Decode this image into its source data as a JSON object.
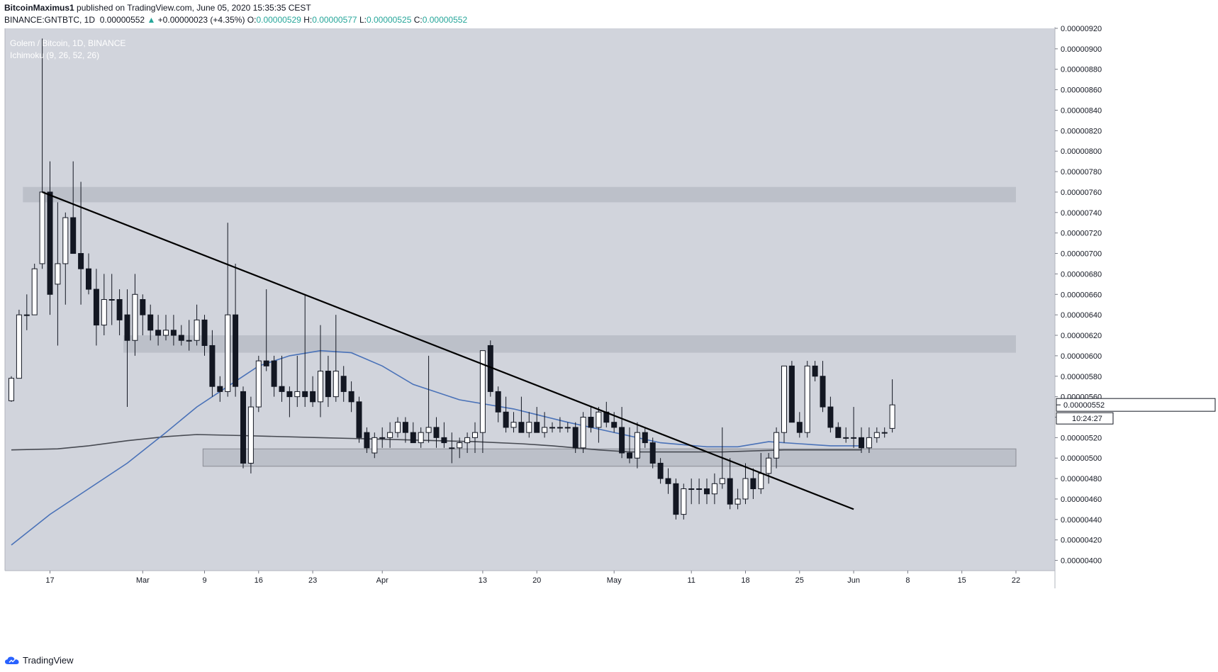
{
  "header": {
    "author": "BitcoinMaximus1",
    "published_text": "published on TradingView.com, June 05, 2020 15:35:35 CEST",
    "symbol": "BINANCE:GNTBTC, 1D",
    "last": "0.00000552",
    "change": "+0.00000023 (+4.35%)",
    "o_label": "O:",
    "o": "0.00000529",
    "h_label": "H:",
    "h": "0.00000577",
    "l_label": "L:",
    "l": "0.00000525",
    "c_label": "C:",
    "c": "0.00000552"
  },
  "footer": {
    "brand": "TradingView"
  },
  "colors": {
    "plot_bg": "#d1d4dc",
    "zone": "#b9bcc5",
    "up_candle": "#ffffff",
    "down_candle": "#131722",
    "blue_line": "#4a72b8",
    "gray_line": "#474a52",
    "trendline": "#000000"
  },
  "chart_data": {
    "type": "candlestick",
    "title": "Golem / Bitcoin, 1D, BINANCE",
    "indicator": "Ichimoku (9, 26, 52, 26)",
    "ylim": [
      3.9e-06,
      9.2e-06
    ],
    "y_ticks": [
      "0.00000400",
      "0.00000420",
      "0.00000440",
      "0.00000460",
      "0.00000480",
      "0.00000500",
      "0.00000520",
      "0.00000540",
      "0.00000560",
      "0.00000580",
      "0.00000600",
      "0.00000620",
      "0.00000640",
      "0.00000660",
      "0.00000680",
      "0.00000700",
      "0.00000720",
      "0.00000740",
      "0.00000760",
      "0.00000780",
      "0.00000800",
      "0.00000820",
      "0.00000840",
      "0.00000860",
      "0.00000880",
      "0.00000900",
      "0.00000920"
    ],
    "x_ticks": [
      {
        "label": "17",
        "day": 0
      },
      {
        "label": "Mar",
        "day": 12
      },
      {
        "label": "9",
        "day": 20
      },
      {
        "label": "16",
        "day": 27
      },
      {
        "label": "23",
        "day": 34
      },
      {
        "label": "Apr",
        "day": 43
      },
      {
        "label": "13",
        "day": 56
      },
      {
        "label": "20",
        "day": 63
      },
      {
        "label": "May",
        "day": 73
      },
      {
        "label": "11",
        "day": 83
      },
      {
        "label": "18",
        "day": 90
      },
      {
        "label": "25",
        "day": 97
      },
      {
        "label": "Jun",
        "day": 104
      },
      {
        "label": "8",
        "day": 111
      },
      {
        "label": "15",
        "day": 118
      },
      {
        "label": "22",
        "day": 125
      }
    ],
    "x_start": "2020-02-11",
    "last_price_label": "0.00000552",
    "countdown_label": "10:24:27",
    "candles": [
      [
        5.56e-06,
        5.8e-06,
        5.55e-06,
        5.78e-06
      ],
      [
        5.78e-06,
        6.45e-06,
        5.78e-06,
        6.4e-06
      ],
      [
        6.4e-06,
        6.6e-06,
        6.25e-06,
        6.4e-06
      ],
      [
        6.4e-06,
        6.9e-06,
        6.4e-06,
        6.85e-06
      ],
      [
        6.9e-06,
        9.1e-06,
        6.85e-06,
        7.6e-06
      ],
      [
        7.6e-06,
        7.9e-06,
        6.4e-06,
        6.6e-06
      ],
      [
        6.7e-06,
        7.5e-06,
        6.1e-06,
        6.9e-06
      ],
      [
        6.9e-06,
        7.4e-06,
        6.5e-06,
        7.35e-06
      ],
      [
        7.35e-06,
        7.9e-06,
        7e-06,
        7e-06
      ],
      [
        7e-06,
        7.7e-06,
        6.5e-06,
        6.85e-06
      ],
      [
        6.85e-06,
        7e-06,
        6.6e-06,
        6.65e-06
      ],
      [
        6.65e-06,
        6.85e-06,
        6.1e-06,
        6.3e-06
      ],
      [
        6.3e-06,
        6.8e-06,
        6.2e-06,
        6.55e-06
      ],
      [
        6.55e-06,
        6.8e-06,
        6.3e-06,
        6.55e-06
      ],
      [
        6.55e-06,
        6.65e-06,
        6.2e-06,
        6.35e-06
      ],
      [
        6.4e-06,
        6.65e-06,
        5.5e-06,
        6.15e-06
      ],
      [
        6.15e-06,
        6.8e-06,
        6e-06,
        6.6e-06
      ],
      [
        6.55e-06,
        6.6e-06,
        6.2e-06,
        6.4e-06
      ],
      [
        6.4e-06,
        6.5e-06,
        6.15e-06,
        6.25e-06
      ],
      [
        6.25e-06,
        6.4e-06,
        6.1e-06,
        6.2e-06
      ],
      [
        6.2e-06,
        6.4e-06,
        6.15e-06,
        6.25e-06
      ],
      [
        6.25e-06,
        6.4e-06,
        6.1e-06,
        6.2e-06
      ],
      [
        6.2e-06,
        6.3e-06,
        6.1e-06,
        6.15e-06
      ],
      [
        6.15e-06,
        6.35e-06,
        6.05e-06,
        6.15e-06
      ],
      [
        6.15e-06,
        6.5e-06,
        6.1e-06,
        6.35e-06
      ],
      [
        6.35e-06,
        6.4e-06,
        6e-06,
        6.1e-06
      ],
      [
        6.1e-06,
        6.25e-06,
        5.6e-06,
        5.7e-06
      ],
      [
        5.7e-06,
        5.8e-06,
        5.55e-06,
        5.65e-06
      ],
      [
        5.65e-06,
        7.3e-06,
        5.6e-06,
        6.4e-06
      ],
      [
        6.4e-06,
        6.9e-06,
        5.6e-06,
        5.7e-06
      ],
      [
        5.65e-06,
        5.7e-06,
        4.9e-06,
        4.95e-06
      ],
      [
        4.95e-06,
        5.6e-06,
        4.85e-06,
        5.5e-06
      ],
      [
        5.5e-06,
        6e-06,
        5.45e-06,
        5.95e-06
      ],
      [
        5.95e-06,
        6.65e-06,
        5.85e-06,
        5.9e-06
      ],
      [
        5.95e-06,
        6e-06,
        5.6e-06,
        5.7e-06
      ],
      [
        5.7e-06,
        6e-06,
        5.55e-06,
        5.65e-06
      ],
      [
        5.65e-06,
        5.7e-06,
        5.4e-06,
        5.6e-06
      ],
      [
        5.6e-06,
        6e-06,
        5.5e-06,
        5.65e-06
      ],
      [
        5.65e-06,
        6.6e-06,
        5.5e-06,
        5.6e-06
      ],
      [
        5.65e-06,
        5.8e-06,
        5.5e-06,
        5.55e-06
      ],
      [
        5.55e-06,
        6.3e-06,
        5.4e-06,
        5.85e-06
      ],
      [
        5.85e-06,
        6e-06,
        5.5e-06,
        5.6e-06
      ],
      [
        5.6e-06,
        6.4e-06,
        5.55e-06,
        5.85e-06
      ],
      [
        5.8e-06,
        5.9e-06,
        5.55e-06,
        5.65e-06
      ],
      [
        5.65e-06,
        5.75e-06,
        5.45e-06,
        5.55e-06
      ],
      [
        5.55e-06,
        5.6e-06,
        5.15e-06,
        5.2e-06
      ],
      [
        5.25e-06,
        5.3e-06,
        5.05e-06,
        5.1e-06
      ],
      [
        5.05e-06,
        5.25e-06,
        5e-06,
        5.2e-06
      ],
      [
        5.2e-06,
        5.3e-06,
        5.1e-06,
        5.2e-06
      ],
      [
        5.2e-06,
        5.35e-06,
        5.1e-06,
        5.25e-06
      ],
      [
        5.25e-06,
        5.4e-06,
        5.2e-06,
        5.35e-06
      ],
      [
        5.35e-06,
        5.4e-06,
        5.15e-06,
        5.25e-06
      ],
      [
        5.25e-06,
        5.35e-06,
        5.15e-06,
        5.15e-06
      ],
      [
        5.15e-06,
        5.3e-06,
        5.1e-06,
        5.25e-06
      ],
      [
        5.25e-06,
        6e-06,
        5.15e-06,
        5.3e-06
      ],
      [
        5.3e-06,
        5.4e-06,
        5.1e-06,
        5.2e-06
      ],
      [
        5.2e-06,
        5.35e-06,
        5.1e-06,
        5.15e-06
      ],
      [
        5.1e-06,
        5.25e-06,
        4.95e-06,
        5.1e-06
      ],
      [
        5.1e-06,
        5.2e-06,
        5e-06,
        5.15e-06
      ],
      [
        5.15e-06,
        5.25e-06,
        5.05e-06,
        5.2e-06
      ],
      [
        5.2e-06,
        5.35e-06,
        5.05e-06,
        5.25e-06
      ],
      [
        5.25e-06,
        6.05e-06,
        5.05e-06,
        6.05e-06
      ],
      [
        6.1e-06,
        6.15e-06,
        5.6e-06,
        5.65e-06
      ],
      [
        5.65e-06,
        5.7e-06,
        5.35e-06,
        5.45e-06
      ],
      [
        5.45e-06,
        5.6e-06,
        5.25e-06,
        5.3e-06
      ],
      [
        5.3e-06,
        5.45e-06,
        5.25e-06,
        5.35e-06
      ],
      [
        5.35e-06,
        5.6e-06,
        5.25e-06,
        5.25e-06
      ],
      [
        5.25e-06,
        5.45e-06,
        5.2e-06,
        5.35e-06
      ],
      [
        5.35e-06,
        5.5e-06,
        5.25e-06,
        5.25e-06
      ],
      [
        5.25e-06,
        5.45e-06,
        5.2e-06,
        5.3e-06
      ],
      [
        5.3e-06,
        5.35e-06,
        5.25e-06,
        5.3e-06
      ],
      [
        5.3e-06,
        5.4e-06,
        5.25e-06,
        5.3e-06
      ],
      [
        5.3e-06,
        5.35e-06,
        5.25e-06,
        5.3e-06
      ],
      [
        5.3e-06,
        5.35e-06,
        5.05e-06,
        5.1e-06
      ],
      [
        5.1e-06,
        5.45e-06,
        5.05e-06,
        5.4e-06
      ],
      [
        5.4e-06,
        5.5e-06,
        5.25e-06,
        5.3e-06
      ],
      [
        5.3e-06,
        5.5e-06,
        5.15e-06,
        5.45e-06
      ],
      [
        5.45e-06,
        5.55e-06,
        5.3e-06,
        5.35e-06
      ],
      [
        5.35e-06,
        5.45e-06,
        5.25e-06,
        5.3e-06
      ],
      [
        5.3e-06,
        5.5e-06,
        5e-06,
        5.05e-06
      ],
      [
        5.05e-06,
        5.3e-06,
        4.95e-06,
        5e-06
      ],
      [
        5e-06,
        5.35e-06,
        4.9e-06,
        5.25e-06
      ],
      [
        5.25e-06,
        5.3e-06,
        5.1e-06,
        5.15e-06
      ],
      [
        5.15e-06,
        5.2e-06,
        4.9e-06,
        4.95e-06
      ],
      [
        4.95e-06,
        5e-06,
        4.75e-06,
        4.8e-06
      ],
      [
        4.8e-06,
        4.9e-06,
        4.65e-06,
        4.75e-06
      ],
      [
        4.75e-06,
        4.8e-06,
        4.4e-06,
        4.45e-06
      ],
      [
        4.45e-06,
        4.75e-06,
        4.4e-06,
        4.7e-06
      ],
      [
        4.7e-06,
        4.8e-06,
        4.55e-06,
        4.7e-06
      ],
      [
        4.7e-06,
        4.8e-06,
        4.55e-06,
        4.7e-06
      ],
      [
        4.7e-06,
        4.8e-06,
        4.55e-06,
        4.65e-06
      ],
      [
        4.65e-06,
        4.85e-06,
        4.55e-06,
        4.75e-06
      ],
      [
        4.75e-06,
        5.3e-06,
        4.7e-06,
        4.8e-06
      ],
      [
        4.8e-06,
        5e-06,
        4.5e-06,
        4.55e-06
      ],
      [
        4.55e-06,
        4.7e-06,
        4.5e-06,
        4.6e-06
      ],
      [
        4.6e-06,
        4.95e-06,
        4.55e-06,
        4.8e-06
      ],
      [
        4.8e-06,
        4.9e-06,
        4.6e-06,
        4.7e-06
      ],
      [
        4.7e-06,
        5.05e-06,
        4.65e-06,
        4.85e-06
      ],
      [
        4.85e-06,
        5.05e-06,
        4.75e-06,
        5e-06
      ],
      [
        5e-06,
        5.3e-06,
        4.9e-06,
        5.25e-06
      ],
      [
        5.25e-06,
        5.9e-06,
        5.15e-06,
        5.9e-06
      ],
      [
        5.9e-06,
        5.95e-06,
        5.35e-06,
        5.35e-06
      ],
      [
        5.35e-06,
        5.45e-06,
        5.2e-06,
        5.25e-06
      ],
      [
        5.25e-06,
        5.95e-06,
        5.2e-06,
        5.9e-06
      ],
      [
        5.9e-06,
        5.95e-06,
        5.75e-06,
        5.8e-06
      ],
      [
        5.8e-06,
        5.95e-06,
        5.45e-06,
        5.5e-06
      ],
      [
        5.5e-06,
        5.6e-06,
        5.25e-06,
        5.3e-06
      ],
      [
        5.3e-06,
        5.35e-06,
        5.2e-06,
        5.2e-06
      ],
      [
        5.2e-06,
        5.3e-06,
        5.15e-06,
        5.2e-06
      ],
      [
        5.2e-06,
        5.5e-06,
        5.1e-06,
        5.2e-06
      ],
      [
        5.2e-06,
        5.3e-06,
        5.05e-06,
        5.1e-06
      ],
      [
        5.1e-06,
        5.3e-06,
        5.05e-06,
        5.2e-06
      ],
      [
        5.2e-06,
        5.3e-06,
        5.15e-06,
        5.25e-06
      ],
      [
        5.25e-06,
        5.3e-06,
        5.2e-06,
        5.25e-06
      ],
      [
        5.29e-06,
        5.77e-06,
        5.25e-06,
        5.52e-06
      ]
    ],
    "blue_line": [
      [
        0,
        4.15e-06
      ],
      [
        5,
        4.45e-06
      ],
      [
        10,
        4.7e-06
      ],
      [
        15,
        4.95e-06
      ],
      [
        20,
        5.25e-06
      ],
      [
        24,
        5.5e-06
      ],
      [
        28,
        5.7e-06
      ],
      [
        32,
        5.9e-06
      ],
      [
        36,
        6e-06
      ],
      [
        40,
        6.05e-06
      ],
      [
        44,
        6.03e-06
      ],
      [
        48,
        5.9e-06
      ],
      [
        52,
        5.72e-06
      ],
      [
        58,
        5.57e-06
      ],
      [
        65,
        5.48e-06
      ],
      [
        72,
        5.35e-06
      ],
      [
        78,
        5.25e-06
      ],
      [
        84,
        5.15e-06
      ],
      [
        90,
        5.11e-06
      ],
      [
        94,
        5.11e-06
      ],
      [
        98,
        5.16e-06
      ],
      [
        102,
        5.14e-06
      ],
      [
        106,
        5.12e-06
      ],
      [
        110,
        5.12e-06
      ]
    ],
    "gray_line": [
      [
        0,
        5.08e-06
      ],
      [
        6,
        5.09e-06
      ],
      [
        10,
        5.12e-06
      ],
      [
        15,
        5.17e-06
      ],
      [
        20,
        5.21e-06
      ],
      [
        24,
        5.23e-06
      ],
      [
        30,
        5.22e-06
      ],
      [
        40,
        5.2e-06
      ],
      [
        50,
        5.18e-06
      ],
      [
        60,
        5.16e-06
      ],
      [
        66,
        5.14e-06
      ],
      [
        70,
        5.12e-06
      ],
      [
        76,
        5.08e-06
      ],
      [
        80,
        5.06e-06
      ],
      [
        86,
        5.06e-06
      ],
      [
        92,
        5.06e-06
      ],
      [
        96,
        5.07e-06
      ],
      [
        100,
        5.08e-06
      ],
      [
        106,
        5.08e-06
      ],
      [
        110,
        5.08e-06
      ]
    ],
    "trendline": {
      "from": [
        4,
        7.6e-06
      ],
      "to": [
        109,
        4.5e-06
      ]
    },
    "zones": [
      {
        "from_day": 1.5,
        "to_day": 130,
        "low": 7.5e-06,
        "high": 7.65e-06
      },
      {
        "from_day": 14.5,
        "to_day": 130,
        "low": 6.03e-06,
        "high": 6.2e-06
      },
      {
        "from_day": 24.8,
        "to_day": 130,
        "low": 4.92e-06,
        "high": 5.09e-06
      }
    ]
  }
}
